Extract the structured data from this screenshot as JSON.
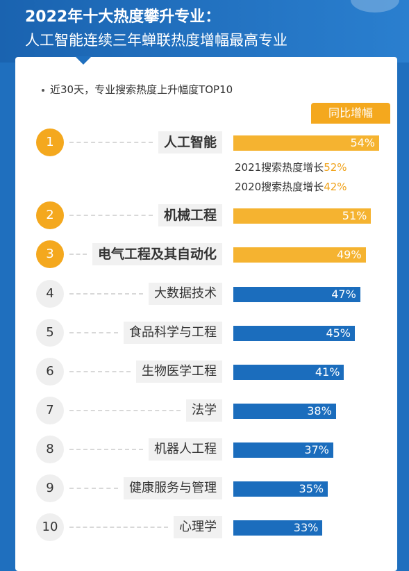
{
  "header": {
    "title": "2022年十大热度攀升专业：",
    "subtitle": "人工智能连续三年蝉联热度增幅最高专业"
  },
  "note": "近30天，专业搜索热度上升幅度TOP10",
  "legend": "同比增幅",
  "annotations": [
    {
      "text": "2021搜索热度增长",
      "value": "52%"
    },
    {
      "text": "2020搜索热度增长",
      "value": "42%"
    }
  ],
  "colors": {
    "accent": "#f5b330",
    "primary": "#1b6dbd",
    "header": "#1f6fbe"
  },
  "chart_data": {
    "type": "bar",
    "orientation": "horizontal",
    "title": "近30天，专业搜索热度上升幅度TOP10",
    "legend": [
      "同比增幅"
    ],
    "ranks": [
      "1",
      "2",
      "3",
      "4",
      "5",
      "6",
      "7",
      "8",
      "9",
      "10"
    ],
    "categories": [
      "人工智能",
      "机械工程",
      "电气工程及其自动化",
      "大数据技术",
      "食品科学与工程",
      "生物医学工程",
      "法学",
      "机器人工程",
      "健康服务与管理",
      "心理学"
    ],
    "values": [
      54,
      51,
      49,
      47,
      45,
      41,
      38,
      37,
      35,
      33
    ],
    "labels": [
      "54%",
      "51%",
      "49%",
      "47%",
      "45%",
      "41%",
      "38%",
      "37%",
      "35%",
      "33%"
    ],
    "highlight_top": 3,
    "grid": false
  }
}
